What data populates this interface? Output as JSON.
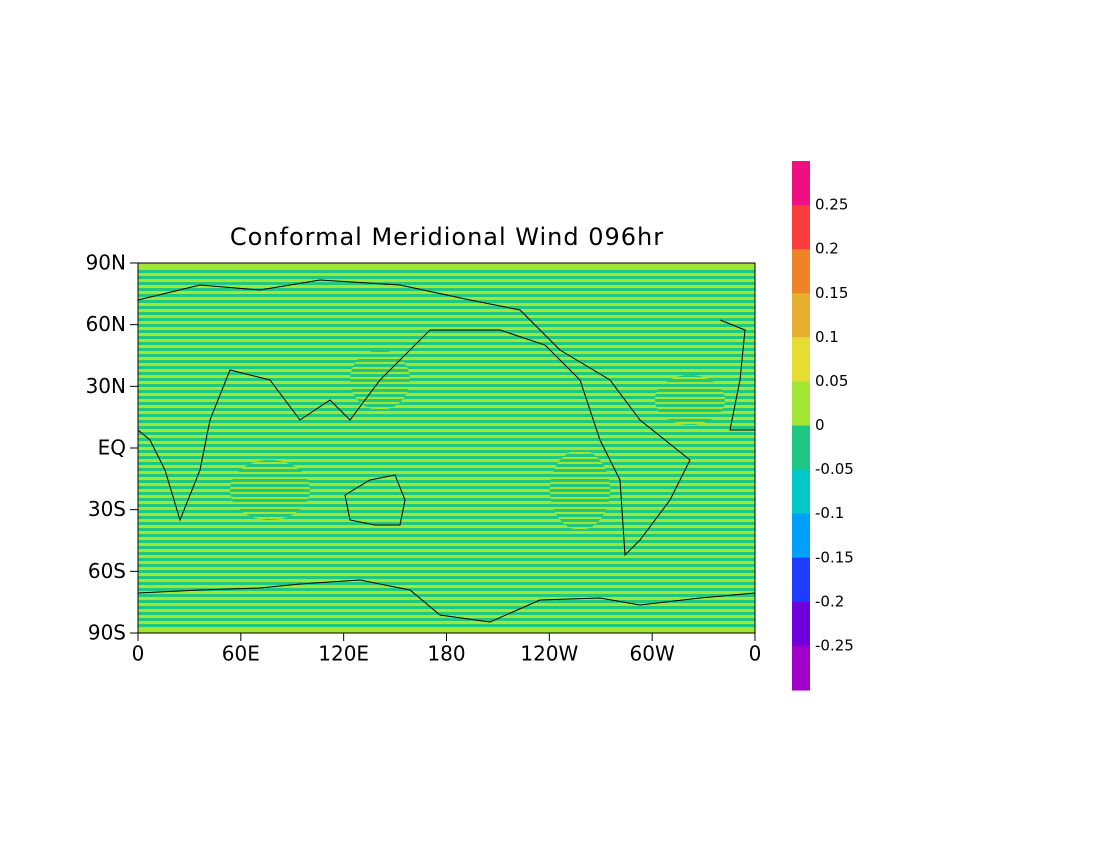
{
  "title": "Conformal Meridional Wind 096hr",
  "lat_ticks": [
    "90N",
    "60N",
    "30N",
    "EQ",
    "30S",
    "60S",
    "90S"
  ],
  "lon_ticks": [
    "0",
    "60E",
    "120E",
    "180",
    "120W",
    "60W",
    "0"
  ],
  "colorbar": {
    "labels": [
      0.25,
      0.2,
      0.15,
      0.1,
      0.05,
      0,
      -0.05,
      -0.1,
      -0.15,
      -0.2,
      -0.25
    ],
    "colors": [
      "#f00f82",
      "#fa3c3c",
      "#f08228",
      "#e6af2d",
      "#e6dc32",
      "#a0e632",
      "#1ec882",
      "#00c8c8",
      "#00a0ff",
      "#1e3cff",
      "#6e00dc",
      "#a000c8"
    ]
  }
}
